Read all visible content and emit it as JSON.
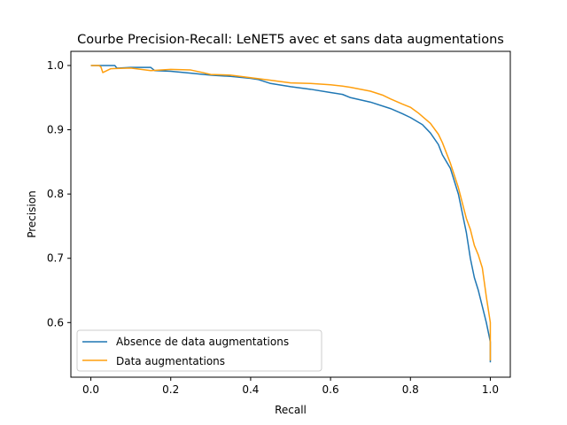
{
  "chart_data": {
    "type": "line",
    "title": "Courbe Precision-Recall: LeNET5 avec et sans data augmentations",
    "xlabel": "Recall",
    "ylabel": "Precision",
    "xlim": [
      -0.05,
      1.05
    ],
    "ylim": [
      0.515,
      1.022
    ],
    "xticks": [
      0.0,
      0.2,
      0.4,
      0.6,
      0.8,
      1.0
    ],
    "xtick_labels": [
      "0.0",
      "0.2",
      "0.4",
      "0.6",
      "0.8",
      "1.0"
    ],
    "yticks": [
      0.6,
      0.7,
      0.8,
      0.9,
      1.0
    ],
    "ytick_labels": [
      "0.6",
      "0.7",
      "0.8",
      "0.9",
      "1.0"
    ],
    "grid": false,
    "legend_position": "lower-left",
    "series": [
      {
        "name": "Absence de data augmentations",
        "color": "#1f77b4",
        "x": [
          0.0,
          0.03,
          0.06,
          0.065,
          0.07,
          0.1,
          0.15,
          0.16,
          0.2,
          0.25,
          0.3,
          0.35,
          0.4,
          0.42,
          0.45,
          0.5,
          0.55,
          0.6,
          0.63,
          0.65,
          0.7,
          0.75,
          0.78,
          0.8,
          0.83,
          0.85,
          0.87,
          0.88,
          0.9,
          0.92,
          0.93,
          0.94,
          0.95,
          0.96,
          0.97,
          0.98,
          0.99,
          1.0,
          1.0
        ],
        "y": [
          1.0,
          1.0,
          1.0,
          0.996,
          0.996,
          0.997,
          0.997,
          0.992,
          0.991,
          0.988,
          0.985,
          0.983,
          0.98,
          0.978,
          0.972,
          0.967,
          0.963,
          0.958,
          0.955,
          0.95,
          0.943,
          0.933,
          0.925,
          0.919,
          0.908,
          0.895,
          0.877,
          0.861,
          0.84,
          0.8,
          0.77,
          0.74,
          0.7,
          0.67,
          0.65,
          0.625,
          0.6,
          0.57,
          0.538
        ]
      },
      {
        "name": "Data augmentations",
        "color": "#ff9f0e",
        "x": [
          0.0,
          0.02,
          0.025,
          0.03,
          0.05,
          0.1,
          0.15,
          0.2,
          0.25,
          0.28,
          0.3,
          0.35,
          0.4,
          0.45,
          0.5,
          0.55,
          0.6,
          0.63,
          0.65,
          0.7,
          0.73,
          0.75,
          0.78,
          0.8,
          0.82,
          0.85,
          0.87,
          0.88,
          0.9,
          0.92,
          0.94,
          0.95,
          0.96,
          0.97,
          0.98,
          0.99,
          1.0,
          1.0
        ],
        "y": [
          1.0,
          1.0,
          0.998,
          0.989,
          0.995,
          0.996,
          0.992,
          0.994,
          0.993,
          0.989,
          0.986,
          0.985,
          0.981,
          0.977,
          0.973,
          0.972,
          0.97,
          0.968,
          0.966,
          0.96,
          0.954,
          0.948,
          0.94,
          0.935,
          0.926,
          0.91,
          0.893,
          0.88,
          0.848,
          0.81,
          0.762,
          0.745,
          0.72,
          0.705,
          0.685,
          0.64,
          0.6,
          0.541
        ]
      }
    ]
  }
}
